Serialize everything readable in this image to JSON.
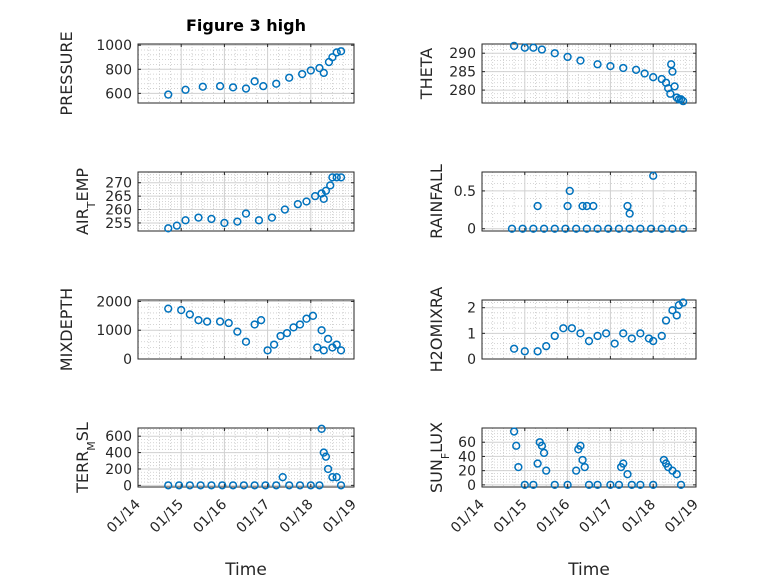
{
  "figure": {
    "title": "Figure 3 high",
    "xlabel": "Time",
    "marker_color": "#0072BD",
    "date_ticks": [
      "01/14",
      "01/15",
      "01/16",
      "01/17",
      "01/18",
      "01/19"
    ]
  },
  "chart_data": [
    {
      "type": "scatter",
      "ylabel": "PRESSURE",
      "yticks": [
        600,
        800,
        1000
      ],
      "ylim": [
        520,
        1010
      ],
      "x": [
        14.7,
        15.1,
        15.5,
        15.9,
        16.2,
        16.5,
        16.7,
        16.9,
        17.2,
        17.5,
        17.8,
        18.0,
        18.2,
        18.3,
        18.42,
        18.5,
        18.6,
        18.7
      ],
      "y": [
        590,
        630,
        655,
        660,
        650,
        640,
        700,
        660,
        680,
        730,
        760,
        790,
        810,
        770,
        860,
        900,
        940,
        950
      ]
    },
    {
      "type": "scatter",
      "ylabel": "THETA",
      "yticks": [
        280,
        285,
        290
      ],
      "ylim": [
        276.5,
        292.5
      ],
      "x": [
        14.75,
        15.0,
        15.2,
        15.4,
        15.7,
        16.0,
        16.3,
        16.7,
        17.0,
        17.3,
        17.6,
        17.8,
        18.0,
        18.2,
        18.3,
        18.35,
        18.4,
        18.42,
        18.45,
        18.5,
        18.55,
        18.6,
        18.65,
        18.7
      ],
      "y": [
        292,
        291.5,
        291.5,
        291,
        290,
        289,
        288,
        287,
        286.5,
        286,
        285.5,
        284.5,
        283.5,
        283,
        282,
        280.5,
        279,
        287,
        285,
        281,
        278,
        277.5,
        277.5,
        277
      ]
    },
    {
      "type": "scatter",
      "ylabel": "AIR_TEMP",
      "yticks": [
        255,
        260,
        265,
        270
      ],
      "ylim": [
        252,
        274
      ],
      "x": [
        14.7,
        14.9,
        15.1,
        15.4,
        15.7,
        16.0,
        16.3,
        16.5,
        16.8,
        17.1,
        17.4,
        17.7,
        17.9,
        18.1,
        18.25,
        18.3,
        18.35,
        18.45,
        18.5,
        18.6,
        18.7
      ],
      "y": [
        253,
        254,
        256,
        257,
        256.5,
        255,
        255.5,
        258.5,
        256,
        257,
        260,
        262,
        263,
        265,
        266,
        264,
        267,
        269,
        272,
        272,
        272
      ]
    },
    {
      "type": "scatter",
      "ylabel": "RAINFALL",
      "yticks": [
        0,
        0.5
      ],
      "ylim": [
        -0.03,
        0.75
      ],
      "x": [
        14.7,
        14.95,
        15.2,
        15.45,
        15.7,
        15.95,
        16.2,
        16.45,
        16.7,
        16.95,
        17.2,
        17.45,
        17.7,
        17.95,
        18.2,
        18.45,
        18.7,
        15.3,
        16.0,
        16.05,
        16.35,
        16.45,
        16.6,
        17.4,
        17.45,
        18.0
      ],
      "y": [
        0,
        0,
        0,
        0,
        0,
        0,
        0,
        0,
        0,
        0,
        0,
        0,
        0,
        0,
        0,
        0,
        0,
        0.3,
        0.3,
        0.5,
        0.3,
        0.3,
        0.3,
        0.3,
        0.2,
        0.7
      ]
    },
    {
      "type": "scatter",
      "ylabel": "MIXDEPTH",
      "yticks": [
        0,
        1000,
        2000
      ],
      "ylim": [
        0,
        2050
      ],
      "x": [
        14.7,
        15.0,
        15.2,
        15.4,
        15.6,
        15.9,
        16.1,
        16.3,
        16.5,
        16.7,
        16.85,
        17.0,
        17.15,
        17.3,
        17.45,
        17.6,
        17.75,
        17.9,
        18.05,
        18.15,
        18.25,
        18.3,
        18.4,
        18.5,
        18.6,
        18.7
      ],
      "y": [
        1750,
        1700,
        1550,
        1350,
        1300,
        1300,
        1250,
        950,
        600,
        1200,
        1350,
        300,
        500,
        800,
        900,
        1100,
        1200,
        1400,
        1500,
        400,
        1000,
        300,
        700,
        400,
        500,
        300
      ]
    },
    {
      "type": "scatter",
      "ylabel": "H2OMIXRA",
      "yticks": [
        0,
        1,
        2
      ],
      "ylim": [
        0,
        2.3
      ],
      "x": [
        14.75,
        15.0,
        15.3,
        15.5,
        15.7,
        15.9,
        16.1,
        16.3,
        16.5,
        16.7,
        16.9,
        17.1,
        17.3,
        17.5,
        17.7,
        17.9,
        18.0,
        18.2,
        18.3,
        18.45,
        18.55,
        18.6,
        18.7
      ],
      "y": [
        0.4,
        0.3,
        0.3,
        0.5,
        0.9,
        1.2,
        1.2,
        1.0,
        0.7,
        0.9,
        1.0,
        0.6,
        1.0,
        0.8,
        1.0,
        0.8,
        0.7,
        0.9,
        1.5,
        1.9,
        1.7,
        2.1,
        2.2
      ]
    },
    {
      "type": "scatter",
      "ylabel": "TERR_MSL",
      "yticks": [
        0,
        200,
        400,
        600
      ],
      "ylim": [
        -20,
        700
      ],
      "x": [
        14.7,
        14.95,
        15.2,
        15.45,
        15.7,
        15.95,
        16.2,
        16.45,
        16.7,
        16.95,
        17.2,
        17.35,
        17.5,
        17.75,
        18.0,
        18.2,
        18.25,
        18.3,
        18.35,
        18.4,
        18.5,
        18.6,
        18.7
      ],
      "y": [
        0,
        0,
        0,
        0,
        0,
        0,
        0,
        0,
        0,
        0,
        0,
        100,
        0,
        0,
        0,
        0,
        690,
        400,
        350,
        200,
        100,
        100,
        0
      ]
    },
    {
      "type": "scatter",
      "ylabel": "SUN_FLUX",
      "yticks": [
        0,
        20,
        40,
        60
      ],
      "ylim": [
        -3,
        80
      ],
      "x": [
        14.75,
        14.8,
        14.85,
        15.0,
        15.2,
        15.3,
        15.35,
        15.4,
        15.45,
        15.5,
        15.7,
        16.0,
        16.2,
        16.25,
        16.3,
        16.35,
        16.4,
        16.5,
        16.7,
        17.0,
        17.2,
        17.25,
        17.3,
        17.4,
        17.5,
        17.7,
        18.0,
        18.25,
        18.3,
        18.35,
        18.45,
        18.55,
        18.65
      ],
      "y": [
        75,
        55,
        25,
        0,
        0,
        30,
        60,
        55,
        45,
        20,
        0,
        0,
        20,
        50,
        55,
        35,
        25,
        0,
        0,
        0,
        0,
        25,
        30,
        15,
        0,
        0,
        0,
        35,
        30,
        25,
        20,
        15,
        0
      ]
    }
  ]
}
